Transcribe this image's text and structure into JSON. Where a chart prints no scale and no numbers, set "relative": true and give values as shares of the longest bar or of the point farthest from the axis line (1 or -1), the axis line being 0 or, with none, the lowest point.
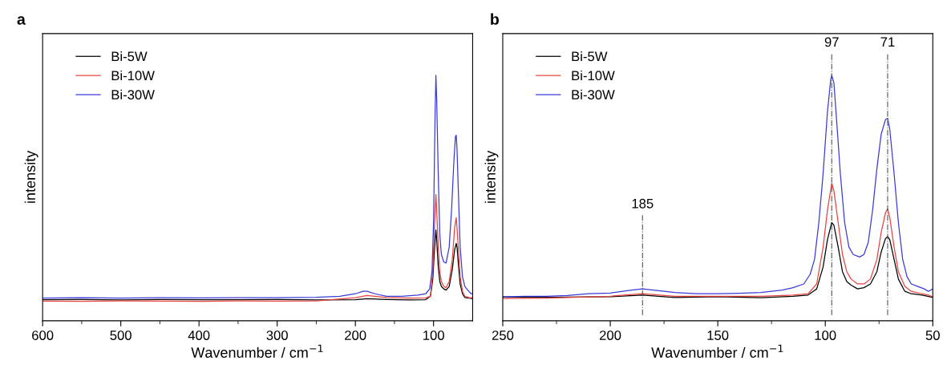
{
  "chart_data": [
    {
      "type": "line",
      "relative": true,
      "xlabel": "Wavenumber / cm$^{−1}$",
      "ylabel": "intensity",
      "annotations": [
        "a"
      ],
      "legend": "top left",
      "grid": false,
      "xlim": [
        600,
        50
      ],
      "xticks": [
        600,
        {
          "value": 550,
          "label": null
        },
        500,
        {
          "value": 450,
          "label": null
        },
        400,
        {
          "value": 350,
          "label": null
        },
        300,
        {
          "value": 250,
          "label": null
        },
        200,
        {
          "value": 150,
          "label": null
        },
        100
      ],
      "series": [
        {
          "name": "Bi-5W",
          "color": "#000000",
          "x": [
            600,
            550,
            500,
            450,
            400,
            350,
            300,
            250,
            200,
            185,
            160,
            130,
            110,
            104,
            101,
            99,
            97,
            96,
            94,
            92,
            90,
            87,
            84,
            80,
            76,
            73,
            71,
            70,
            68,
            66,
            63,
            60,
            55,
            50
          ],
          "values": [
            0.086,
            0.087,
            0.085,
            0.087,
            0.086,
            0.086,
            0.087,
            0.085,
            0.086,
            0.09,
            0.087,
            0.085,
            0.086,
            0.1,
            0.17,
            0.28,
            0.37,
            0.33,
            0.22,
            0.16,
            0.14,
            0.13,
            0.125,
            0.14,
            0.21,
            0.29,
            0.315,
            0.3,
            0.22,
            0.15,
            0.11,
            0.095,
            0.092,
            0.09
          ]
        },
        {
          "name": "Bi-10W",
          "color": "#e8433f",
          "x": [
            600,
            550,
            500,
            450,
            400,
            350,
            300,
            250,
            200,
            185,
            160,
            130,
            110,
            104,
            101,
            99,
            97,
            96,
            94,
            92,
            90,
            87,
            84,
            80,
            76,
            73,
            71,
            70,
            68,
            66,
            63,
            60,
            55,
            50
          ],
          "values": [
            0.08,
            0.079,
            0.081,
            0.08,
            0.079,
            0.081,
            0.08,
            0.081,
            0.094,
            0.103,
            0.095,
            0.092,
            0.093,
            0.1,
            0.2,
            0.38,
            0.515,
            0.45,
            0.3,
            0.2,
            0.16,
            0.14,
            0.135,
            0.16,
            0.25,
            0.38,
            0.42,
            0.38,
            0.28,
            0.18,
            0.12,
            0.1,
            0.095,
            0.094
          ]
        },
        {
          "name": "Bi-30W",
          "color": "#3a3ad8",
          "x": [
            600,
            550,
            500,
            450,
            400,
            350,
            300,
            250,
            220,
            200,
            190,
            185,
            175,
            160,
            140,
            120,
            110,
            105,
            102,
            100,
            98,
            97,
            96,
            94,
            92,
            90,
            87,
            84,
            80,
            77,
            74,
            72,
            71,
            70,
            68,
            66,
            63,
            60,
            55,
            52,
            50
          ],
          "values": [
            0.092,
            0.094,
            0.092,
            0.094,
            0.093,
            0.094,
            0.094,
            0.096,
            0.1,
            0.11,
            0.12,
            0.12,
            0.11,
            0.1,
            0.1,
            0.105,
            0.11,
            0.13,
            0.2,
            0.4,
            0.85,
            1.0,
            0.9,
            0.6,
            0.35,
            0.27,
            0.24,
            0.235,
            0.3,
            0.45,
            0.65,
            0.75,
            0.756,
            0.7,
            0.5,
            0.3,
            0.18,
            0.14,
            0.12,
            0.11,
            0.11
          ]
        }
      ]
    },
    {
      "type": "line",
      "relative": true,
      "xlabel": "Wavenumber / cm$^{−1}$",
      "ylabel": "intensity",
      "annotations": [
        "b"
      ],
      "legend": "top left",
      "grid": false,
      "xlim": [
        250,
        50
      ],
      "xticks": [
        250,
        {
          "value": 225,
          "label": null
        },
        200,
        {
          "value": 175,
          "label": null
        },
        150,
        {
          "value": 125,
          "label": null
        },
        100,
        {
          "value": 75,
          "label": null
        },
        50
      ],
      "ref_lines": [
        {
          "axis": "x",
          "value": 185,
          "label": "185",
          "color": "#555555",
          "line_style": "dashdot"
        },
        {
          "axis": "x",
          "value": 97,
          "label": "97",
          "color": "#555555",
          "line_style": "dashdot"
        },
        {
          "axis": "x",
          "value": 71,
          "label": "71",
          "color": "#555555",
          "line_style": "dashdot"
        }
      ],
      "series": [
        {
          "name": "Bi-5W",
          "color": "#000000",
          "x": [
            250,
            230,
            200,
            185,
            170,
            150,
            130,
            115,
            108,
            104,
            101,
            99,
            97,
            96,
            94,
            92,
            90,
            88,
            85,
            82,
            79,
            76,
            74,
            72,
            71,
            70,
            68,
            66,
            63,
            60,
            55,
            50
          ],
          "values": [
            0.097,
            0.096,
            0.098,
            0.105,
            0.095,
            0.098,
            0.094,
            0.1,
            0.105,
            0.13,
            0.22,
            0.33,
            0.4,
            0.39,
            0.3,
            0.2,
            0.16,
            0.145,
            0.13,
            0.135,
            0.15,
            0.2,
            0.28,
            0.335,
            0.343,
            0.33,
            0.25,
            0.17,
            0.12,
            0.11,
            0.105,
            0.095
          ]
        },
        {
          "name": "Bi-10W",
          "color": "#e8433f",
          "x": [
            250,
            230,
            200,
            185,
            170,
            150,
            130,
            115,
            108,
            104,
            101,
            99,
            97,
            96,
            94,
            92,
            90,
            88,
            85,
            82,
            79,
            76,
            74,
            72,
            71,
            70,
            68,
            66,
            63,
            60,
            55,
            52,
            50
          ],
          "values": [
            0.091,
            0.092,
            0.1,
            0.11,
            0.1,
            0.1,
            0.1,
            0.105,
            0.11,
            0.15,
            0.3,
            0.45,
            0.56,
            0.53,
            0.4,
            0.27,
            0.2,
            0.17,
            0.15,
            0.15,
            0.17,
            0.25,
            0.36,
            0.44,
            0.456,
            0.42,
            0.3,
            0.2,
            0.14,
            0.12,
            0.11,
            0.105,
            0.097
          ]
        },
        {
          "name": "Bi-30W",
          "color": "#3a3ad8",
          "x": [
            250,
            240,
            230,
            220,
            210,
            200,
            190,
            185,
            180,
            170,
            160,
            150,
            140,
            130,
            120,
            115,
            110,
            107,
            105,
            103,
            101,
            99,
            97.5,
            97,
            96,
            95,
            93,
            91,
            89,
            87,
            84,
            82,
            80,
            78,
            76,
            74,
            72,
            71,
            70,
            68,
            66,
            64,
            62,
            60,
            57,
            54,
            52,
            50
          ],
          "values": [
            0.097,
            0.1,
            0.1,
            0.103,
            0.11,
            0.113,
            0.125,
            0.13,
            0.125,
            0.115,
            0.11,
            0.11,
            0.112,
            0.115,
            0.125,
            0.135,
            0.15,
            0.19,
            0.25,
            0.4,
            0.6,
            0.85,
            0.98,
            1.0,
            0.97,
            0.85,
            0.6,
            0.4,
            0.3,
            0.27,
            0.26,
            0.27,
            0.32,
            0.45,
            0.62,
            0.76,
            0.82,
            0.825,
            0.78,
            0.6,
            0.4,
            0.25,
            0.18,
            0.15,
            0.14,
            0.13,
            0.12,
            0.13
          ]
        }
      ]
    }
  ]
}
